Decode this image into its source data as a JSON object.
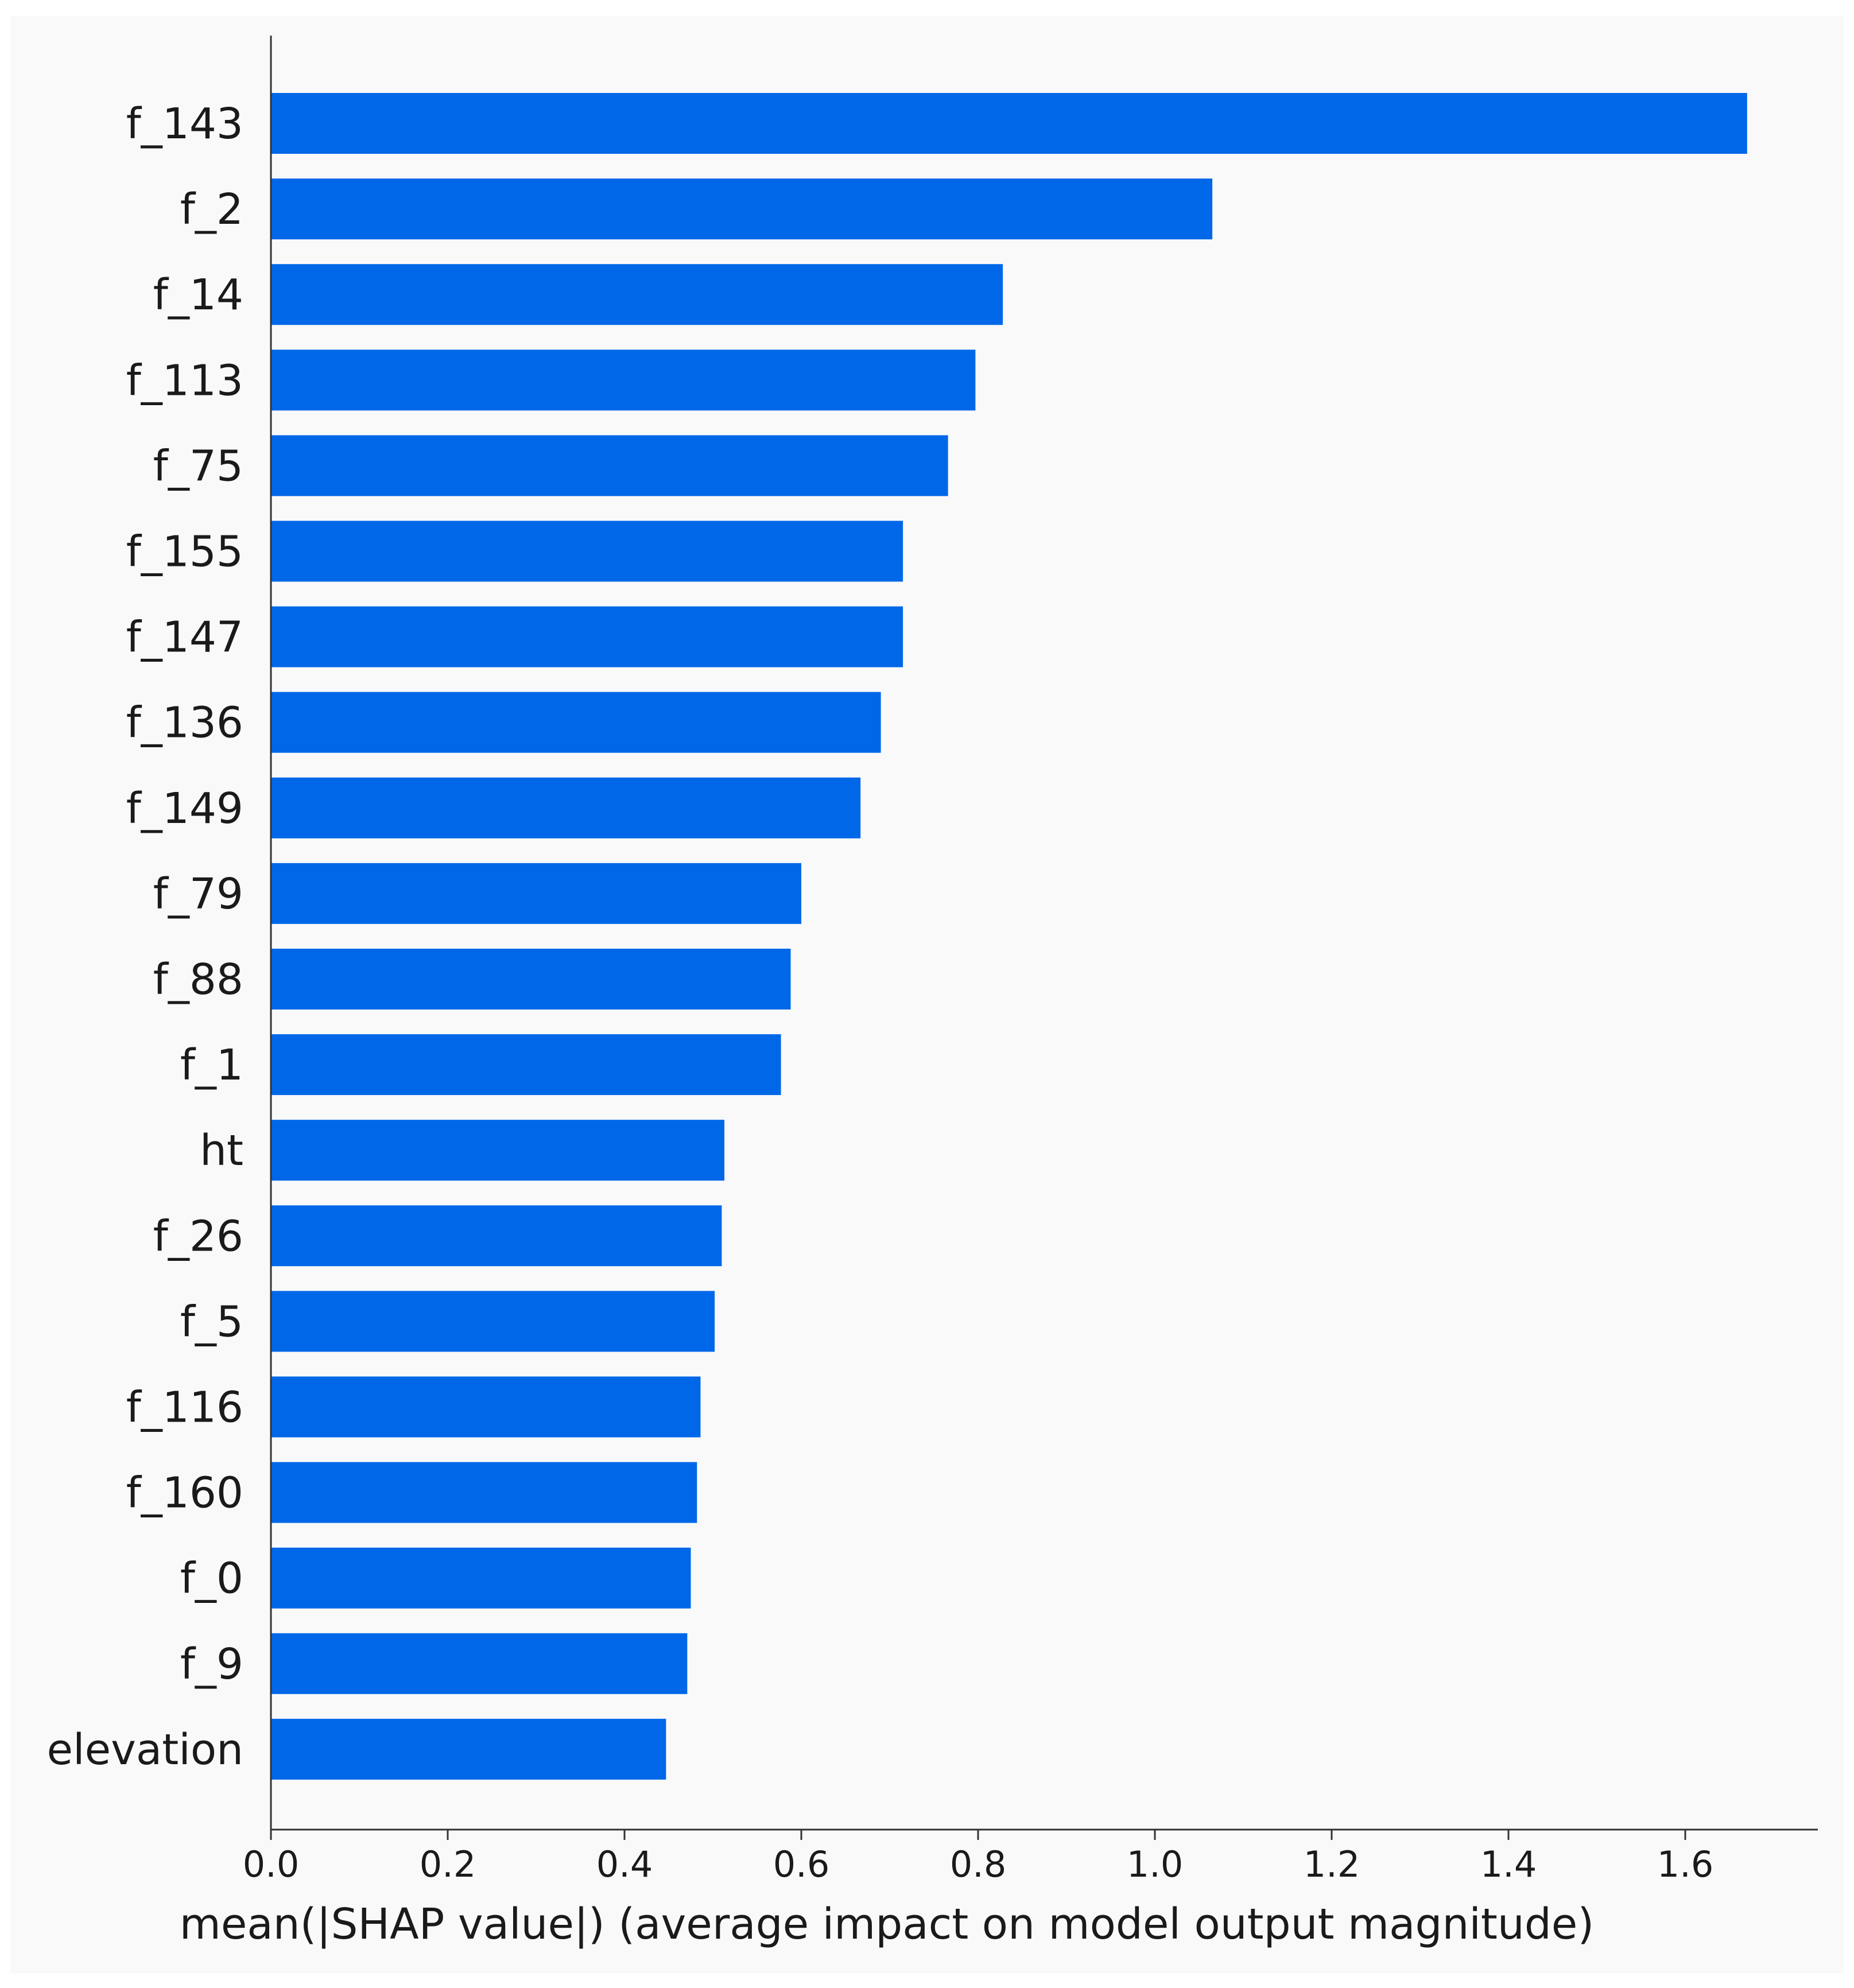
{
  "chart_data": {
    "type": "bar",
    "orientation": "horizontal",
    "categories": [
      "f_143",
      "f_2",
      "f_14",
      "f_113",
      "f_75",
      "f_155",
      "f_147",
      "f_136",
      "f_149",
      "f_79",
      "f_88",
      "f_1",
      "ht",
      "f_26",
      "f_5",
      "f_116",
      "f_160",
      "f_0",
      "f_9",
      "elevation"
    ],
    "values": [
      1.67,
      1.065,
      0.828,
      0.797,
      0.766,
      0.715,
      0.715,
      0.69,
      0.667,
      0.6,
      0.588,
      0.577,
      0.513,
      0.51,
      0.502,
      0.486,
      0.482,
      0.475,
      0.471,
      0.447
    ],
    "title": "",
    "xlabel": "mean(|SHAP value|) (average impact on model output magnitude)",
    "ylabel": "",
    "xlim": [
      0,
      1.75
    ],
    "xticks": [
      "0.0",
      "0.2",
      "0.4",
      "0.6",
      "0.8",
      "1.0",
      "1.2",
      "1.4",
      "1.6"
    ],
    "bar_color": "#0068e8",
    "grid": false,
    "legend": "none"
  }
}
